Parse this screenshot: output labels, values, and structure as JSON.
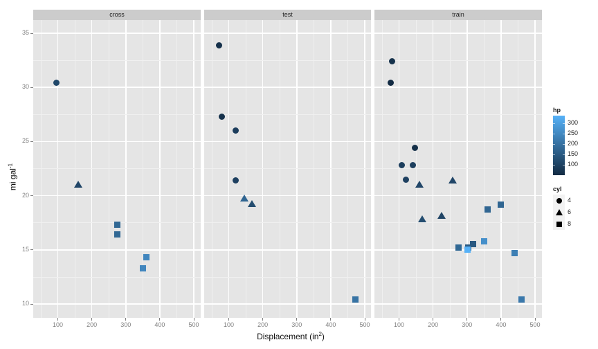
{
  "chart_data": {
    "type": "scatter",
    "title": "",
    "xlabel": "Displacement (in",
    "xlabel_sup": "2",
    "xlabel_close": ")",
    "ylabel": "mi gal",
    "ylabel_sup": "-1",
    "xlim": [
      28,
      520
    ],
    "ylim": [
      8.8,
      36.4
    ],
    "x_ticks": [
      100,
      200,
      300,
      400,
      500
    ],
    "y_ticks": [
      10,
      15,
      20,
      25,
      30,
      35
    ],
    "grid": true,
    "facets": [
      "cross",
      "test",
      "train"
    ],
    "legend_position": "right",
    "legends": {
      "color": {
        "title": "hp",
        "low_color": "#132b43",
        "high_color": "#56b1f7",
        "range": [
          52,
          335
        ],
        "ticks": [
          100,
          150,
          200,
          250,
          300
        ]
      },
      "shape": {
        "title": "cyl",
        "entries": [
          {
            "label": "4",
            "shape": "circle"
          },
          {
            "label": "6",
            "shape": "triangle"
          },
          {
            "label": "8",
            "shape": "square"
          }
        ]
      }
    },
    "points": [
      {
        "facet": "cross",
        "disp": 95,
        "mpg": 30.4,
        "cyl": 4,
        "hp": 113
      },
      {
        "facet": "cross",
        "disp": 160,
        "mpg": 21.0,
        "cyl": 6,
        "hp": 110
      },
      {
        "facet": "cross",
        "disp": 276,
        "mpg": 17.3,
        "cyl": 8,
        "hp": 180
      },
      {
        "facet": "cross",
        "disp": 276,
        "mpg": 16.4,
        "cyl": 8,
        "hp": 180
      },
      {
        "facet": "cross",
        "disp": 351,
        "mpg": 13.3,
        "cyl": 8,
        "hp": 245
      },
      {
        "facet": "cross",
        "disp": 360,
        "mpg": 14.3,
        "cyl": 8,
        "hp": 245
      },
      {
        "facet": "test",
        "disp": 71,
        "mpg": 33.9,
        "cyl": 4,
        "hp": 65
      },
      {
        "facet": "test",
        "disp": 79,
        "mpg": 27.3,
        "cyl": 4,
        "hp": 66
      },
      {
        "facet": "test",
        "disp": 120,
        "mpg": 26.0,
        "cyl": 4,
        "hp": 91
      },
      {
        "facet": "test",
        "disp": 120,
        "mpg": 21.4,
        "cyl": 4,
        "hp": 97
      },
      {
        "facet": "test",
        "disp": 145,
        "mpg": 19.7,
        "cyl": 6,
        "hp": 175
      },
      {
        "facet": "test",
        "disp": 168,
        "mpg": 19.2,
        "cyl": 6,
        "hp": 123
      },
      {
        "facet": "test",
        "disp": 472,
        "mpg": 10.4,
        "cyl": 8,
        "hp": 205
      },
      {
        "facet": "train",
        "disp": 79,
        "mpg": 32.4,
        "cyl": 4,
        "hp": 66
      },
      {
        "facet": "train",
        "disp": 76,
        "mpg": 30.4,
        "cyl": 4,
        "hp": 52
      },
      {
        "facet": "train",
        "disp": 146,
        "mpg": 24.4,
        "cyl": 4,
        "hp": 62
      },
      {
        "facet": "train",
        "disp": 108,
        "mpg": 22.8,
        "cyl": 4,
        "hp": 93
      },
      {
        "facet": "train",
        "disp": 141,
        "mpg": 22.8,
        "cyl": 4,
        "hp": 95
      },
      {
        "facet": "train",
        "disp": 120,
        "mpg": 21.5,
        "cyl": 4,
        "hp": 97
      },
      {
        "facet": "train",
        "disp": 160,
        "mpg": 21.0,
        "cyl": 6,
        "hp": 110
      },
      {
        "facet": "train",
        "disp": 258,
        "mpg": 21.4,
        "cyl": 6,
        "hp": 110
      },
      {
        "facet": "train",
        "disp": 168,
        "mpg": 17.8,
        "cyl": 6,
        "hp": 123
      },
      {
        "facet": "train",
        "disp": 225,
        "mpg": 18.1,
        "cyl": 6,
        "hp": 105
      },
      {
        "facet": "train",
        "disp": 360,
        "mpg": 18.7,
        "cyl": 8,
        "hp": 175
      },
      {
        "facet": "train",
        "disp": 400,
        "mpg": 19.2,
        "cyl": 8,
        "hp": 175
      },
      {
        "facet": "train",
        "disp": 276,
        "mpg": 15.2,
        "cyl": 8,
        "hp": 180
      },
      {
        "facet": "train",
        "disp": 304,
        "mpg": 15.2,
        "cyl": 8,
        "hp": 150
      },
      {
        "facet": "train",
        "disp": 318,
        "mpg": 15.5,
        "cyl": 8,
        "hp": 150
      },
      {
        "facet": "train",
        "disp": 351,
        "mpg": 15.8,
        "cyl": 8,
        "hp": 264
      },
      {
        "facet": "train",
        "disp": 301,
        "mpg": 15.0,
        "cyl": 8,
        "hp": 335
      },
      {
        "facet": "train",
        "disp": 440,
        "mpg": 14.7,
        "cyl": 8,
        "hp": 230
      },
      {
        "facet": "train",
        "disp": 460,
        "mpg": 10.4,
        "cyl": 8,
        "hp": 215
      }
    ]
  }
}
